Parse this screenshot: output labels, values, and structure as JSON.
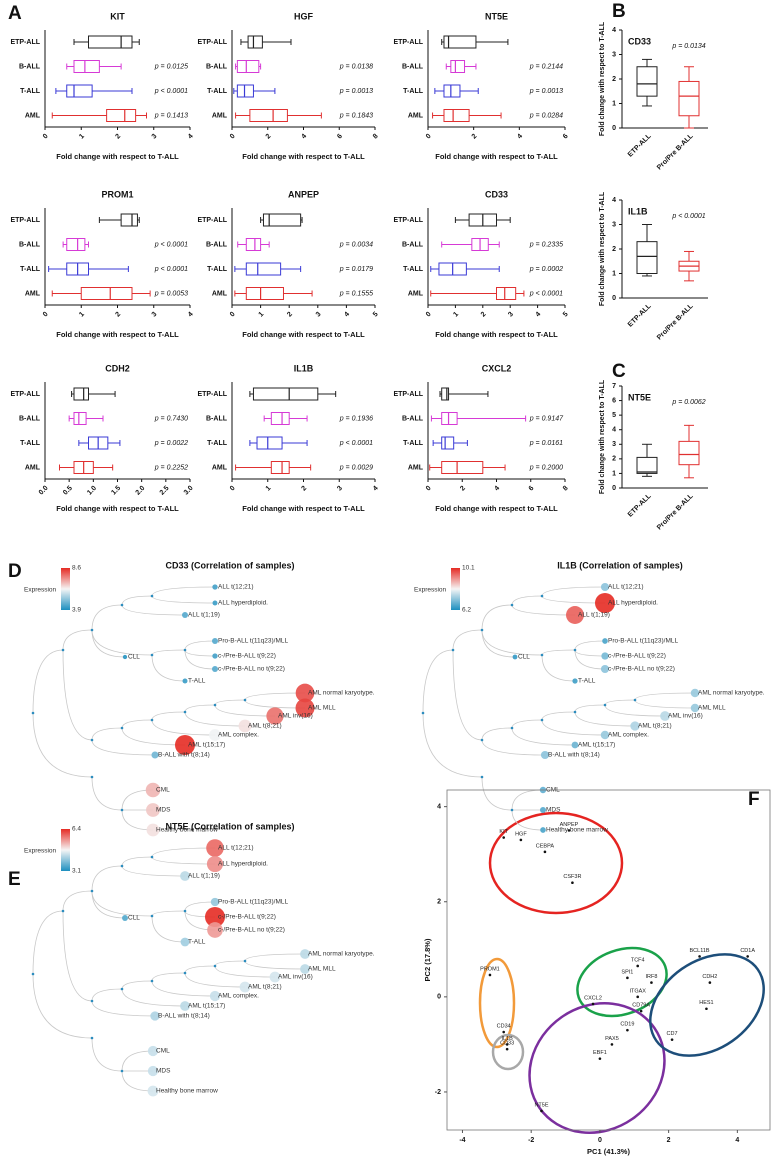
{
  "panel_labels": [
    "A",
    "B",
    "C",
    "D",
    "E",
    "F"
  ],
  "chart_data": [
    {
      "type": "hbox",
      "title": "KIT",
      "categories": [
        "ETP-ALL",
        "B-ALL",
        "T-ALL",
        "AML"
      ],
      "colors": [
        "#222222",
        "#d63ad6",
        "#3a3ad6",
        "#e03030"
      ],
      "whislo": [
        0.8,
        0.6,
        0.3,
        0.2
      ],
      "q1": [
        1.2,
        0.8,
        0.6,
        1.7
      ],
      "median": [
        2.1,
        1.1,
        0.8,
        2.2
      ],
      "q3": [
        2.4,
        1.5,
        1.3,
        2.5
      ],
      "whishi": [
        2.6,
        2.1,
        2.4,
        2.8
      ],
      "p_values": [
        null,
        "p = 0.0125",
        "p < 0.0001",
        "p = 0.1413"
      ],
      "xlabel": "Fold change with respect to T-ALL",
      "xlim": [
        0,
        4
      ],
      "xticks": [
        0,
        1,
        2,
        3,
        4
      ]
    },
    {
      "type": "hbox",
      "title": "HGF",
      "categories": [
        "ETP-ALL",
        "B-ALL",
        "T-ALL",
        "AML"
      ],
      "colors": [
        "#222222",
        "#d63ad6",
        "#3a3ad6",
        "#e03030"
      ],
      "whislo": [
        0.5,
        0.2,
        0.1,
        0.2
      ],
      "q1": [
        0.9,
        0.3,
        0.3,
        1.0
      ],
      "median": [
        1.2,
        0.8,
        0.7,
        2.3
      ],
      "q3": [
        1.7,
        1.5,
        1.2,
        3.1
      ],
      "whishi": [
        3.3,
        1.6,
        2.4,
        5.0
      ],
      "p_values": [
        null,
        "p = 0.0138",
        "p = 0.0013",
        "p = 0.1843"
      ],
      "xlabel": "Fold change with respect to T-ALL",
      "xlim": [
        0,
        8
      ],
      "xticks": [
        0,
        2,
        4,
        6,
        8
      ]
    },
    {
      "type": "hbox",
      "title": "NT5E",
      "categories": [
        "ETP-ALL",
        "B-ALL",
        "T-ALL",
        "AML"
      ],
      "colors": [
        "#222222",
        "#d63ad6",
        "#3a3ad6",
        "#e03030"
      ],
      "whislo": [
        0.6,
        0.8,
        0.3,
        0.2
      ],
      "q1": [
        0.7,
        1.0,
        0.7,
        0.7
      ],
      "median": [
        0.9,
        1.2,
        1.0,
        1.1
      ],
      "q3": [
        2.1,
        1.6,
        1.4,
        1.8
      ],
      "whishi": [
        3.5,
        2.1,
        2.2,
        3.2
      ],
      "p_values": [
        null,
        "p = 0.2144",
        "p = 0.0013",
        "p = 0.0284"
      ],
      "xlabel": "Fold change with respect to T-ALL",
      "xlim": [
        0,
        6
      ],
      "xticks": [
        0,
        2,
        4,
        6
      ]
    },
    {
      "type": "hbox",
      "title": "PROM1",
      "categories": [
        "ETP-ALL",
        "B-ALL",
        "T-ALL",
        "AML"
      ],
      "colors": [
        "#222222",
        "#d63ad6",
        "#3a3ad6",
        "#e03030"
      ],
      "whislo": [
        1.5,
        0.5,
        0.1,
        0.2
      ],
      "q1": [
        2.1,
        0.6,
        0.6,
        1.0
      ],
      "median": [
        2.4,
        0.9,
        0.9,
        1.8
      ],
      "q3": [
        2.55,
        1.1,
        1.2,
        2.4
      ],
      "whishi": [
        2.6,
        1.2,
        2.3,
        2.9
      ],
      "p_values": [
        null,
        "p < 0.0001",
        "p < 0.0001",
        "p = 0.0053"
      ],
      "xlabel": "Fold change with respect to T-ALL",
      "xlim": [
        0,
        4
      ],
      "xticks": [
        0,
        1,
        2,
        3,
        4
      ]
    },
    {
      "type": "hbox",
      "title": "ANPEP",
      "categories": [
        "ETP-ALL",
        "B-ALL",
        "T-ALL",
        "AML"
      ],
      "colors": [
        "#222222",
        "#d63ad6",
        "#3a3ad6",
        "#e03030"
      ],
      "whislo": [
        1.0,
        0.2,
        0.1,
        0.1
      ],
      "q1": [
        1.1,
        0.5,
        0.5,
        0.5
      ],
      "median": [
        1.3,
        0.8,
        0.9,
        1.0
      ],
      "q3": [
        2.4,
        1.0,
        1.7,
        1.8
      ],
      "whishi": [
        2.45,
        1.3,
        2.4,
        2.8
      ],
      "p_values": [
        null,
        "p = 0.0034",
        "p = 0.0179",
        "p = 0.1555"
      ],
      "xlabel": "Fold change with respect to T-ALL",
      "xlim": [
        0,
        5
      ],
      "xticks": [
        0,
        1,
        2,
        3,
        4,
        5
      ]
    },
    {
      "type": "hbox",
      "title": "CD33",
      "categories": [
        "ETP-ALL",
        "B-ALL",
        "T-ALL",
        "AML"
      ],
      "colors": [
        "#222222",
        "#d63ad6",
        "#3a3ad6",
        "#e03030"
      ],
      "whislo": [
        1.0,
        0.5,
        0.1,
        0.1
      ],
      "q1": [
        1.5,
        1.6,
        0.4,
        2.5
      ],
      "median": [
        2.0,
        1.9,
        0.9,
        2.8
      ],
      "q3": [
        2.5,
        2.2,
        1.4,
        3.2
      ],
      "whishi": [
        3.0,
        2.6,
        2.6,
        3.5
      ],
      "p_values": [
        null,
        "p = 0.2335",
        "p = 0.0002",
        "p < 0.0001"
      ],
      "xlabel": "Fold change with respect to T-ALL",
      "xlim": [
        0,
        5
      ],
      "xticks": [
        0,
        1,
        2,
        3,
        4,
        5
      ]
    },
    {
      "type": "hbox",
      "title": "CDH2",
      "categories": [
        "ETP-ALL",
        "B-ALL",
        "T-ALL",
        "AML"
      ],
      "colors": [
        "#222222",
        "#d63ad6",
        "#3a3ad6",
        "#e03030"
      ],
      "whislo": [
        0.55,
        0.5,
        0.7,
        0.3
      ],
      "q1": [
        0.6,
        0.6,
        0.9,
        0.6
      ],
      "median": [
        0.8,
        0.7,
        1.1,
        0.8
      ],
      "q3": [
        0.9,
        0.85,
        1.3,
        1.0
      ],
      "whishi": [
        1.45,
        1.2,
        1.55,
        1.4
      ],
      "p_values": [
        null,
        "p = 0.7430",
        "p = 0.0022",
        "p = 0.2252"
      ],
      "xlabel": "Fold change with respect to T-ALL",
      "xlim": [
        0,
        3
      ],
      "xticks": [
        {
          "value": 0,
          "label": "0.0"
        },
        0.5,
        {
          "value": 1,
          "label": "1.0"
        },
        1.5,
        {
          "value": 2,
          "label": "2.0"
        },
        2.5,
        {
          "value": 3,
          "label": "3.0"
        }
      ]
    },
    {
      "type": "hbox",
      "title": "IL1B",
      "categories": [
        "ETP-ALL",
        "B-ALL",
        "T-ALL",
        "AML"
      ],
      "colors": [
        "#222222",
        "#d63ad6",
        "#3a3ad6",
        "#e03030"
      ],
      "whislo": [
        0.5,
        0.9,
        0.5,
        0.1
      ],
      "q1": [
        0.6,
        1.1,
        0.7,
        1.1
      ],
      "median": [
        1.6,
        1.4,
        1.0,
        1.4
      ],
      "q3": [
        2.4,
        1.6,
        1.4,
        1.6
      ],
      "whishi": [
        2.9,
        2.1,
        2.1,
        2.2
      ],
      "p_values": [
        null,
        "p = 0.1936",
        "p < 0.0001",
        "p = 0.0029"
      ],
      "xlabel": "Fold change with respect to T-ALL",
      "xlim": [
        0,
        4
      ],
      "xticks": [
        0,
        1,
        2,
        3,
        4
      ]
    },
    {
      "type": "hbox",
      "title": "CXCL2",
      "categories": [
        "ETP-ALL",
        "B-ALL",
        "T-ALL",
        "AML"
      ],
      "colors": [
        "#222222",
        "#d63ad6",
        "#3a3ad6",
        "#e03030"
      ],
      "whislo": [
        0.7,
        0.2,
        0.3,
        0.1
      ],
      "q1": [
        0.8,
        0.8,
        0.8,
        0.8
      ],
      "median": [
        1.1,
        1.2,
        1.0,
        1.7
      ],
      "q3": [
        1.2,
        1.7,
        1.5,
        3.2
      ],
      "whishi": [
        3.5,
        5.7,
        2.3,
        4.5
      ],
      "p_values": [
        null,
        "p = 0.9147",
        "p = 0.0161",
        "p = 0.2000"
      ],
      "xlabel": "Fold change with respect to T-ALL",
      "xlim": [
        0,
        8
      ],
      "xticks": [
        0,
        2,
        4,
        6,
        8
      ]
    },
    {
      "type": "vbox",
      "title": "CD33",
      "categories": [
        "ETP-ALL",
        "Pro/Pre B-ALL"
      ],
      "colors": [
        "#222222",
        "#e03030"
      ],
      "whislo": [
        0.9,
        0.0
      ],
      "q1": [
        1.3,
        0.5
      ],
      "median": [
        1.8,
        1.3
      ],
      "q3": [
        2.5,
        1.9
      ],
      "whishi": [
        2.8,
        2.5
      ],
      "p_values": [
        null,
        "p = 0.0134"
      ],
      "ylabel": "Fold change with respect to T-ALL",
      "ylim": [
        0,
        4
      ],
      "yticks": [
        0,
        1,
        2,
        3,
        4
      ]
    },
    {
      "type": "vbox",
      "title": "IL1B",
      "categories": [
        "ETP-ALL",
        "Pro/Pre B-ALL"
      ],
      "colors": [
        "#222222",
        "#e03030"
      ],
      "whislo": [
        0.9,
        0.7
      ],
      "q1": [
        1.0,
        1.1
      ],
      "median": [
        1.7,
        1.3
      ],
      "q3": [
        2.3,
        1.5
      ],
      "whishi": [
        3.0,
        1.9
      ],
      "p_values": [
        null,
        "p < 0.0001"
      ],
      "ylabel": "Fold change with respect to T-ALL",
      "ylim": [
        0,
        4
      ],
      "yticks": [
        0,
        1,
        2,
        3,
        4
      ]
    },
    {
      "type": "vbox",
      "title": "NT5E",
      "categories": [
        "ETP-ALL",
        "Pro/Pre B-ALL"
      ],
      "colors": [
        "#222222",
        "#e03030"
      ],
      "whislo": [
        0.8,
        0.7
      ],
      "q1": [
        1.0,
        1.6
      ],
      "median": [
        1.1,
        2.3
      ],
      "q3": [
        2.1,
        3.2
      ],
      "whishi": [
        3.0,
        4.3
      ],
      "p_values": [
        null,
        "p = 0.0062"
      ],
      "ylabel": "Fold change with respect to T-ALL",
      "ylim": [
        0,
        7
      ],
      "yticks": [
        0,
        1,
        2,
        3,
        4,
        5,
        6,
        7
      ]
    },
    {
      "type": "dendrogram",
      "title": "CD33 (Correlation of samples)",
      "legend_title": "Expression",
      "clim": [
        3.9,
        8.6
      ],
      "cticks": [
        3.9,
        8.6
      ],
      "leaves": [
        "ALL t(12;21)",
        "ALL hyperdiploid.",
        "ALL t(1;19)",
        "CLL",
        "Pro-B-ALL t(11q23)/MLL",
        "c-/Pre-B-ALL t(9;22)",
        "c-/Pre-B-ALL no t(9;22)",
        "T-ALL",
        "AML normal karyotype.",
        "AML MLL",
        "AML inv(16)",
        "AML t(8;21)",
        "AML complex.",
        "AML t(15;17)",
        "B-ALL with t(8;14)",
        "CML",
        "MDS",
        "Healthy bone marrow"
      ],
      "values": [
        4.3,
        4.2,
        4.5,
        4.0,
        4.5,
        4.3,
        4.5,
        4.2,
        8.2,
        8.3,
        7.8,
        6.5,
        6.2,
        8.6,
        4.8,
        7.0,
        6.8,
        6.5
      ]
    },
    {
      "type": "dendrogram",
      "title": "IL1B (Correlation of samples)",
      "legend_title": "Expression",
      "clim": [
        6.2,
        10.1
      ],
      "cticks": [
        6.2,
        10.1
      ],
      "leaves": [
        "ALL t(12;21)",
        "ALL hyperdiploid.",
        "ALL t(1;19)",
        "CLL",
        "Pro-B-ALL t(11q23)/MLL",
        "c-/Pre-B-ALL t(9;22)",
        "c-/Pre-B-ALL no t(9;22)",
        "T-ALL",
        "AML normal karyotype.",
        "AML MLL",
        "AML inv(16)",
        "AML t(8;21)",
        "AML complex.",
        "AML t(15;17)",
        "B-ALL with t(8;14)",
        "CML",
        "MDS",
        "Healthy bone marrow"
      ],
      "values": [
        7.2,
        10.1,
        9.6,
        6.4,
        6.6,
        7.0,
        7.2,
        6.5,
        7.3,
        7.3,
        7.6,
        7.5,
        7.3,
        6.9,
        7.2,
        6.8,
        6.7,
        6.6
      ]
    },
    {
      "type": "dendrogram",
      "title": "NT5E (Correlation of samples)",
      "legend_title": "Expression",
      "clim": [
        3.1,
        6.4
      ],
      "cticks": [
        3.1,
        6.4
      ],
      "leaves": [
        "ALL t(12;21)",
        "ALL hyperdiploid.",
        "ALL t(1;19)",
        "CLL",
        "Pro-B-ALL t(11q23)/MLL",
        "c-/Pre-B-ALL t(9;22)",
        "c-/Pre-B-ALL no t(9;22)",
        "T-ALL",
        "AML normal karyotype.",
        "AML MLL",
        "AML inv(16)",
        "AML t(8;21)",
        "AML complex.",
        "AML t(15;17)",
        "B-ALL with t(8;14)",
        "CML",
        "MDS",
        "Healthy bone marrow"
      ],
      "values": [
        5.9,
        5.6,
        4.3,
        3.5,
        4.0,
        6.4,
        5.5,
        4.1,
        4.3,
        4.3,
        4.5,
        4.5,
        4.4,
        4.3,
        4.2,
        4.4,
        4.4,
        4.5
      ]
    },
    {
      "type": "scatter",
      "xlabel": "PC1 (41.3%)",
      "ylabel": "PC2 (17.8%)",
      "xlim": [
        -4.45,
        4.95
      ],
      "ylim": [
        -2.8,
        4.35
      ],
      "xticks": [
        -4,
        -2,
        0,
        2,
        4
      ],
      "yticks": [
        -2,
        0,
        2,
        4
      ],
      "labels": [
        "KIT",
        "HGF",
        "ANPEP",
        "CEBPA",
        "CSF3R",
        "PROM1",
        "CD34",
        "IL1B",
        "CD33",
        "NT5E",
        "SPI1",
        "TCF4",
        "IRF8",
        "ITGAX",
        "CXCL2",
        "CD79A",
        "CD19",
        "PAX5",
        "EBF1",
        "CD7",
        "BCL11B",
        "CDH2",
        "HES1",
        "CD1A"
      ],
      "x": [
        -2.8,
        -2.3,
        -0.9,
        -1.6,
        -0.8,
        -3.2,
        -2.8,
        -2.7,
        -2.7,
        -1.7,
        0.8,
        1.1,
        1.5,
        1.1,
        -0.2,
        1.2,
        0.8,
        0.35,
        0.0,
        2.1,
        2.9,
        3.2,
        3.1,
        4.3
      ],
      "values": [
        3.35,
        3.3,
        3.5,
        3.05,
        2.4,
        0.46,
        -0.74,
        -1.0,
        -1.1,
        -2.4,
        0.4,
        0.65,
        0.3,
        0.0,
        -0.15,
        -0.3,
        -0.7,
        -1.0,
        -1.3,
        -0.9,
        0.85,
        0.3,
        -0.25,
        0.85
      ]
    }
  ]
}
